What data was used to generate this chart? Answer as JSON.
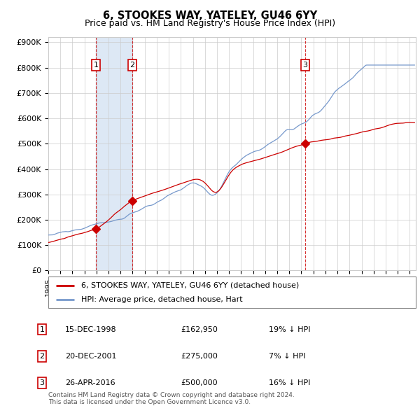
{
  "title": "6, STOOKES WAY, YATELEY, GU46 6YY",
  "subtitle": "Price paid vs. HM Land Registry's House Price Index (HPI)",
  "ylabel_ticks": [
    "£0",
    "£100K",
    "£200K",
    "£300K",
    "£400K",
    "£500K",
    "£600K",
    "£700K",
    "£800K",
    "£900K"
  ],
  "ytick_vals": [
    0,
    100000,
    200000,
    300000,
    400000,
    500000,
    600000,
    700000,
    800000,
    900000
  ],
  "ylim": [
    0,
    920000
  ],
  "xlim_start": 1995.0,
  "xlim_end": 2025.5,
  "sale_dates": [
    1998.96,
    2001.97,
    2016.32
  ],
  "sale_prices": [
    162950,
    275000,
    500000
  ],
  "sale_labels": [
    "1",
    "2",
    "3"
  ],
  "shade_regions": [
    [
      1998.96,
      2001.97
    ]
  ],
  "vline_dates": [
    1998.96,
    2001.97,
    2016.32
  ],
  "legend_red": "6, STOOKES WAY, YATELEY, GU46 6YY (detached house)",
  "legend_blue": "HPI: Average price, detached house, Hart",
  "table_rows": [
    {
      "label": "1",
      "date": "15-DEC-1998",
      "price": "£162,950",
      "pct": "19% ↓ HPI"
    },
    {
      "label": "2",
      "date": "20-DEC-2001",
      "price": "£275,000",
      "pct": "7% ↓ HPI"
    },
    {
      "label": "3",
      "date": "26-APR-2016",
      "price": "£500,000",
      "pct": "16% ↓ HPI"
    }
  ],
  "footnote": "Contains HM Land Registry data © Crown copyright and database right 2024.\nThis data is licensed under the Open Government Licence v3.0.",
  "red_color": "#cc0000",
  "blue_color": "#7799cc",
  "shade_color": "#dde8f5",
  "grid_color": "#cccccc",
  "background_color": "#ffffff"
}
